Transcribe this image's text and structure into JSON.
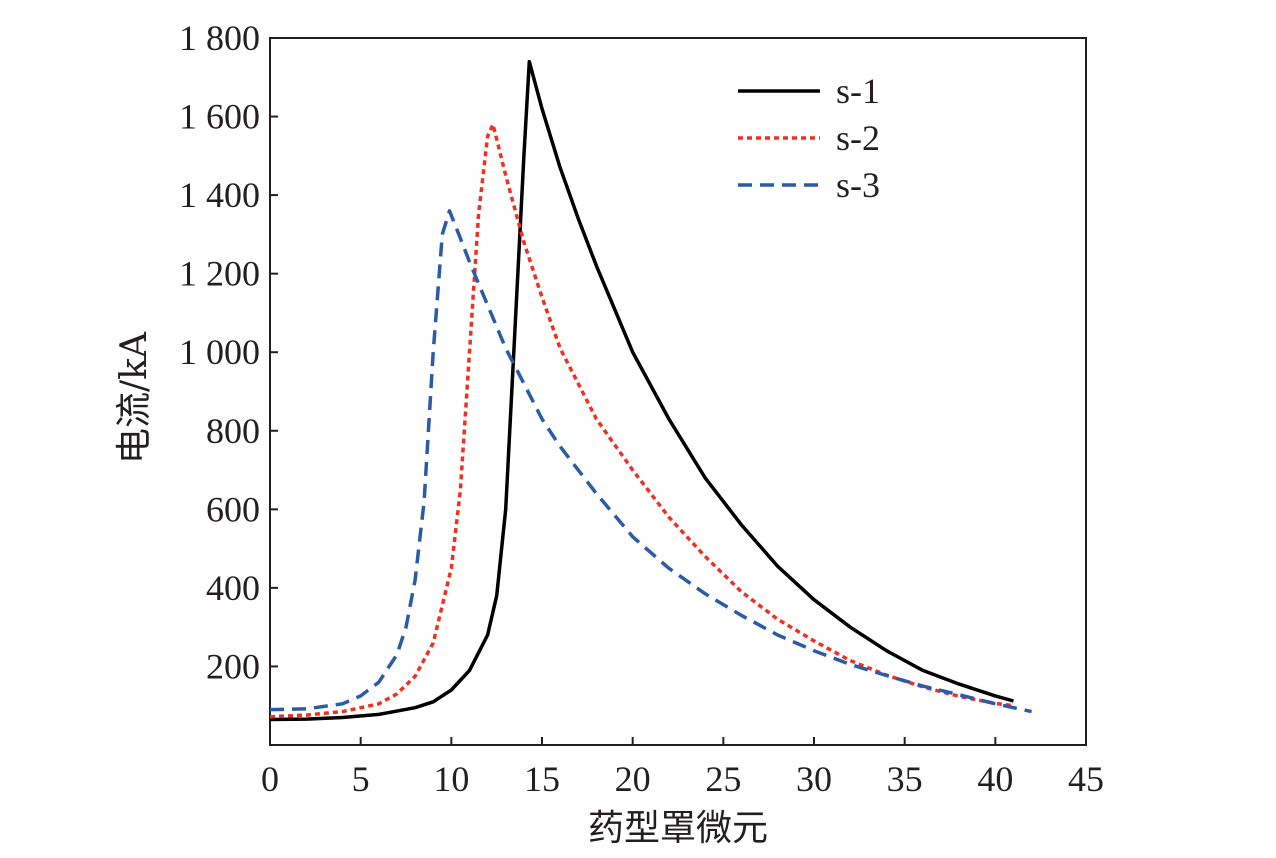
{
  "chart_data": {
    "type": "line",
    "xlabel": "药型罩微元",
    "ylabel": "电流/kA",
    "xlim": [
      0,
      45
    ],
    "ylim": [
      0,
      1800
    ],
    "x_ticks": [
      0,
      5,
      10,
      15,
      20,
      25,
      30,
      35,
      40,
      45
    ],
    "x_tick_labels": [
      "0",
      "5",
      "10",
      "15",
      "20",
      "25",
      "30",
      "35",
      "40",
      "45"
    ],
    "y_ticks": [
      200,
      400,
      600,
      800,
      1000,
      1200,
      1400,
      1600,
      1800
    ],
    "y_tick_labels": [
      "200",
      "400",
      "600",
      "800",
      "1 000",
      "1 200",
      "1 400",
      "1 600",
      "1 800"
    ],
    "grid": false,
    "legend_position": "top-right",
    "series": [
      {
        "name": "s-1",
        "color": "#000000",
        "style": "solid",
        "x": [
          0,
          2,
          4,
          6,
          8,
          9,
          10,
          11,
          12,
          12.5,
          13,
          13.5,
          14,
          14.3,
          15,
          16,
          17,
          18,
          20,
          22,
          24,
          26,
          28,
          30,
          32,
          34,
          36,
          38,
          40,
          41
        ],
        "y": [
          65,
          66,
          70,
          78,
          95,
          110,
          140,
          190,
          280,
          380,
          600,
          1050,
          1500,
          1740,
          1620,
          1470,
          1340,
          1220,
          1000,
          830,
          680,
          560,
          455,
          370,
          300,
          240,
          190,
          155,
          125,
          112
        ]
      },
      {
        "name": "s-2",
        "color": "#ee3124",
        "style": "dotted",
        "x": [
          0,
          2,
          4,
          6,
          7,
          8,
          9,
          10,
          10.5,
          11,
          11.5,
          12,
          12.3,
          13,
          14,
          15,
          16,
          18,
          20,
          22,
          24,
          26,
          28,
          30,
          32,
          34,
          36,
          38,
          40,
          41
        ],
        "y": [
          72,
          76,
          85,
          105,
          130,
          175,
          260,
          450,
          650,
          1000,
          1350,
          1550,
          1580,
          1450,
          1280,
          1140,
          1010,
          830,
          700,
          580,
          480,
          390,
          320,
          265,
          215,
          178,
          148,
          124,
          106,
          100
        ]
      },
      {
        "name": "s-3",
        "color": "#2b5aa7",
        "style": "dashed",
        "x": [
          0,
          2,
          4,
          5,
          6,
          7,
          7.5,
          8,
          8.5,
          9,
          9.5,
          9.9,
          10.5,
          11,
          12,
          13,
          14,
          15,
          16,
          18,
          20,
          22,
          24,
          26,
          28,
          30,
          32,
          34,
          36,
          38,
          40,
          42
        ],
        "y": [
          90,
          92,
          105,
          125,
          160,
          230,
          300,
          420,
          620,
          1000,
          1300,
          1360,
          1290,
          1230,
          1120,
          1010,
          920,
          830,
          760,
          640,
          530,
          450,
          385,
          330,
          280,
          240,
          205,
          177,
          150,
          128,
          105,
          85
        ]
      }
    ]
  }
}
